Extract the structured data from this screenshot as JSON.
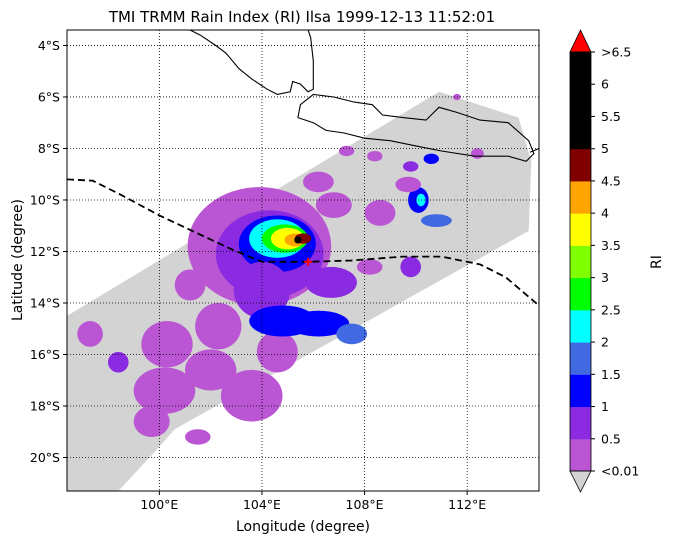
{
  "chart_data": {
    "type": "map",
    "title": "TMI TRMM Rain Index (RI) Ilsa 1999-12-13 11:52:01",
    "xlabel": "Longitude (degree)",
    "ylabel": "Latitude (degree)",
    "xlim": [
      96.4,
      114.8
    ],
    "ylim": [
      -21.3,
      -3.4
    ],
    "xticks": [
      {
        "value": 100,
        "label": "100°E"
      },
      {
        "value": 104,
        "label": "104°E"
      },
      {
        "value": 108,
        "label": "108°E"
      },
      {
        "value": 112,
        "label": "112°E"
      }
    ],
    "yticks": [
      {
        "value": -4,
        "label": "4°S"
      },
      {
        "value": -6,
        "label": "6°S"
      },
      {
        "value": -8,
        "label": "8°S"
      },
      {
        "value": -10,
        "label": "10°S"
      },
      {
        "value": -12,
        "label": "12°S"
      },
      {
        "value": -14,
        "label": "14°S"
      },
      {
        "value": -16,
        "label": "16°S"
      },
      {
        "value": -18,
        "label": "18°S"
      },
      {
        "value": -20,
        "label": "20°S"
      }
    ],
    "grid": true,
    "storm_center": {
      "lon": 105.8,
      "lat": -12.4
    },
    "colorbar": {
      "label": "RI",
      "under_label": "<0.01",
      "over_label": ">6.5",
      "under_color": "#d3d3d3",
      "over_color": "#ff0000",
      "bins": [
        {
          "color": "#ba55d3",
          "label": "0.5"
        },
        {
          "color": "#8a2be2",
          "label": "1"
        },
        {
          "color": "#0000ff",
          "label": "1.5"
        },
        {
          "color": "#4169e1",
          "label": "2"
        },
        {
          "color": "#00ffff",
          "label": "2.5"
        },
        {
          "color": "#00ff00",
          "label": "3"
        },
        {
          "color": "#7fff00",
          "label": "3.5"
        },
        {
          "color": "#ffff00",
          "label": "4"
        },
        {
          "color": "#ffa500",
          "label": "4.5"
        },
        {
          "color": "#800000",
          "label": "5"
        },
        {
          "color": "#000000",
          "label": "5.5"
        },
        {
          "color": "#000000",
          "label": "6"
        },
        {
          "color": "#000000",
          "label": "6.5"
        }
      ]
    },
    "swath": [
      [
        96.4,
        -14.5
      ],
      [
        110.9,
        -5.8
      ],
      [
        114.0,
        -6.8
      ],
      [
        114.5,
        -8.5
      ],
      [
        114.4,
        -11.2
      ],
      [
        100.6,
        -18.9
      ],
      [
        99.8,
        -19.8
      ],
      [
        98.4,
        -21.3
      ],
      [
        96.4,
        -21.3
      ]
    ],
    "track": [
      [
        96.4,
        -9.2
      ],
      [
        97.4,
        -9.25
      ],
      [
        98.5,
        -9.8
      ],
      [
        100.0,
        -10.6
      ],
      [
        101.5,
        -11.3
      ],
      [
        102.9,
        -11.95
      ],
      [
        104.0,
        -12.4
      ],
      [
        105.8,
        -12.4
      ],
      [
        107.5,
        -12.35
      ],
      [
        109.5,
        -12.2
      ],
      [
        111.0,
        -12.2
      ],
      [
        112.5,
        -12.5
      ],
      [
        113.5,
        -13.0
      ],
      [
        114.8,
        -14.1
      ]
    ],
    "coastlines": [
      [
        [
          101.2,
          -3.4
        ],
        [
          101.6,
          -3.6
        ],
        [
          102.2,
          -4.0
        ],
        [
          102.6,
          -4.3
        ],
        [
          103.1,
          -4.9
        ],
        [
          103.6,
          -5.3
        ],
        [
          104.2,
          -5.7
        ],
        [
          104.6,
          -5.9
        ],
        [
          105.1,
          -5.8
        ],
        [
          105.2,
          -5.4
        ],
        [
          105.5,
          -5.5
        ],
        [
          105.8,
          -5.8
        ],
        [
          106.0,
          -5.7
        ],
        [
          106.0,
          -4.6
        ],
        [
          105.9,
          -3.7
        ],
        [
          105.8,
          -3.4
        ]
      ],
      [
        [
          105.4,
          -6.8
        ],
        [
          105.5,
          -6.3
        ],
        [
          106.0,
          -5.9
        ],
        [
          106.8,
          -6.0
        ],
        [
          107.6,
          -6.2
        ],
        [
          108.3,
          -6.3
        ],
        [
          108.7,
          -6.7
        ],
        [
          109.5,
          -6.8
        ],
        [
          110.4,
          -6.9
        ],
        [
          110.9,
          -6.4
        ],
        [
          111.6,
          -6.6
        ],
        [
          112.5,
          -6.9
        ],
        [
          113.6,
          -7.0
        ],
        [
          114.4,
          -7.7
        ],
        [
          114.6,
          -8.2
        ],
        [
          114.3,
          -8.5
        ],
        [
          113.6,
          -8.3
        ],
        [
          112.3,
          -8.3
        ],
        [
          111.0,
          -8.1
        ],
        [
          110.0,
          -7.9
        ],
        [
          109.0,
          -7.7
        ],
        [
          108.0,
          -7.6
        ],
        [
          107.2,
          -7.4
        ],
        [
          106.5,
          -7.3
        ],
        [
          106.0,
          -7.0
        ],
        [
          105.4,
          -6.8
        ]
      ],
      [
        [
          114.45,
          -8.15
        ],
        [
          114.8,
          -8.0
        ]
      ]
    ]
  }
}
